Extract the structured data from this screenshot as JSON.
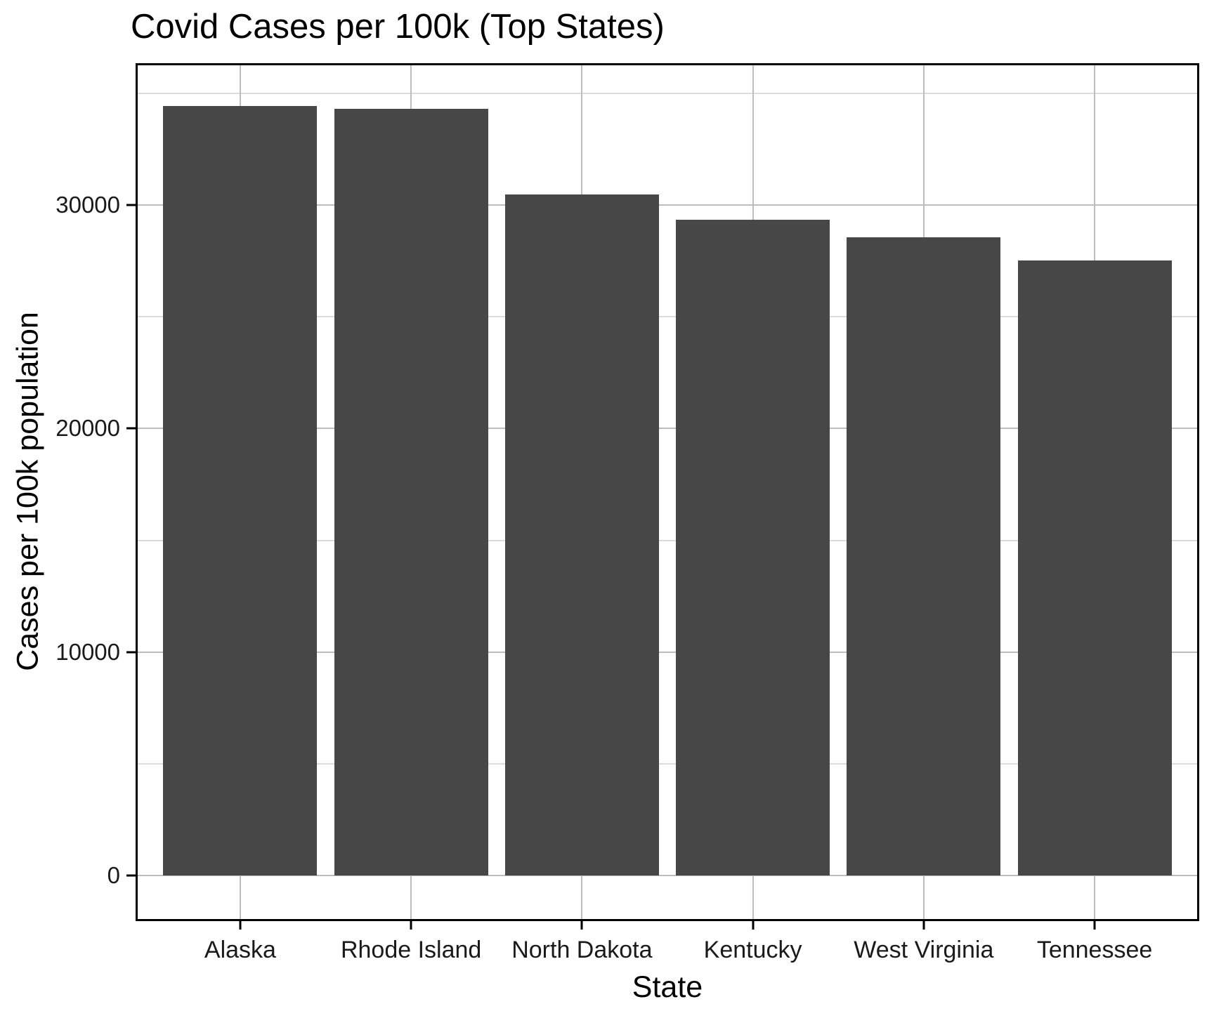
{
  "chart_data": {
    "type": "bar",
    "title": "Covid Cases per 100k (Top States)",
    "xlabel": "State",
    "ylabel": "Cases per 100k population",
    "categories": [
      "Alaska",
      "Rhode Island",
      "North Dakota",
      "Kentucky",
      "West Virginia",
      "Tennessee"
    ],
    "values": [
      34440,
      34310,
      30470,
      29340,
      28560,
      27530
    ],
    "y_ticks": [
      0,
      10000,
      20000,
      30000
    ],
    "y_minor_ticks": [
      5000,
      15000,
      25000,
      35000
    ],
    "axis_range": [
      -1940,
      36250
    ],
    "bar_base_value": 0,
    "bar_width_fraction": 0.9,
    "category_edge_padding": 0.6,
    "grid": "on",
    "legend": "none",
    "colors": {
      "bar": "#474747",
      "grid_major": "#bdbdbd",
      "grid_minor": "#dcdcdc",
      "panel_border": "#000000",
      "tick": "#000000",
      "axis_text": "#1a1a1a",
      "title_text": "#000000",
      "background": "#ffffff"
    }
  }
}
